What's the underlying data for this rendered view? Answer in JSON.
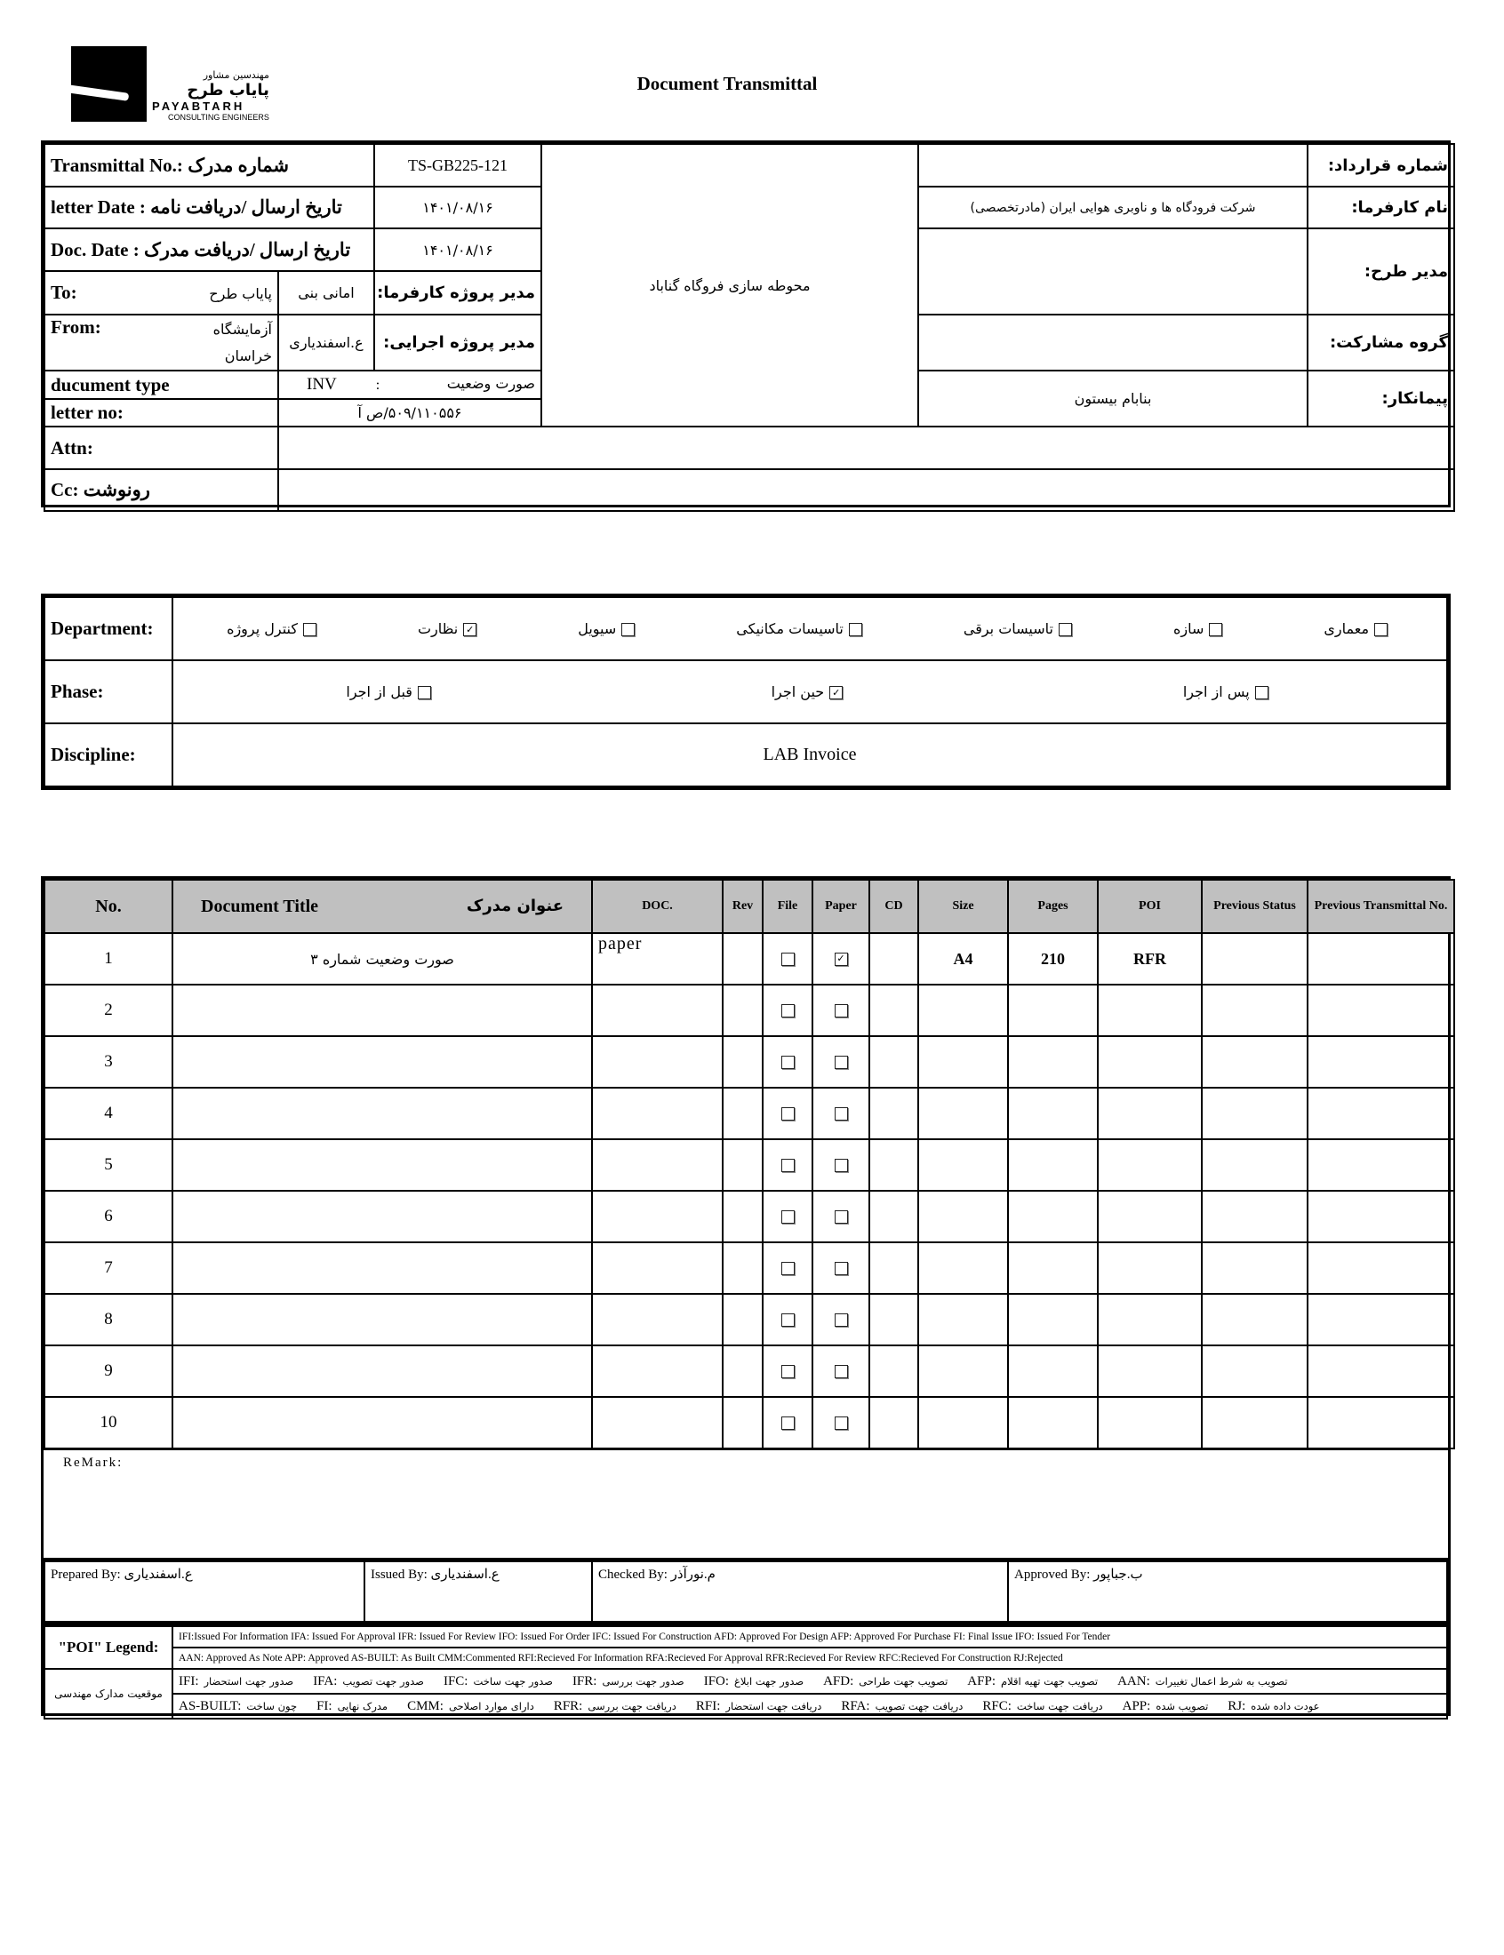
{
  "header": {
    "title": "Document Transmittal",
    "logo": {
      "fa_line1": "مهندسین مشاور",
      "fa_line2": "پایاب طرح",
      "en_line1": "PAYABTARH",
      "en_line2": "CONSULTING ENGINEERS"
    }
  },
  "info": {
    "transmittal_label": "Transmittal No.: شماره مدرک",
    "transmittal_value": "TS-GB225-121",
    "letter_date_label": "letter Date  :  تاریخ ارسال /دریافت نامه",
    "letter_date_value": "۱۴۰۱/۰۸/۱۶",
    "doc_date_label": "Doc. Date :    تاریخ ارسال /دریافت مدرک",
    "doc_date_value": "۱۴۰۱/۰۸/۱۶",
    "to_label": "To:",
    "to_value": "پایاب طرح",
    "client_pm_value": "امانی بنی",
    "client_pm_label": "مدیر پروژه کارفرما:",
    "from_label": "From:",
    "from_value": "آزمایشگاه خراسان",
    "exec_pm_value": "ع.اسفندیاری",
    "exec_pm_label": "مدیر پروژه اجرایی:",
    "doc_type_label": "ducument type",
    "doc_type_code": "INV",
    "doc_type_sep": ":",
    "doc_type_fa": "صورت وضعیت",
    "letter_no_label": "letter no:",
    "letter_no_value": "۵۰۹/۱۱۰۵۵۶/ص آ",
    "project": "محوطه سازی فروگاه گناباد",
    "contract_label": "شماره قرارداد:",
    "contract_value": "",
    "employer_label": "نام کارفرما:",
    "employer_value": "شرکت فرودگاه ها و ناوبری هوایی ایران (مادرتخصصی)",
    "plan_manager_label": "مدیر طرح:",
    "plan_manager_value": "",
    "partner_label": "گروه مشارکت:",
    "partner_value": "",
    "contractor_label": "پیمانکار:",
    "contractor_value": "بنابام بیستون",
    "attn_label": "Attn:",
    "attn_value": "",
    "cc_label": "Cc: رونوشت",
    "cc_value": ""
  },
  "classification": {
    "department_label": "Department:",
    "departments": [
      {
        "label": "معماری",
        "checked": false
      },
      {
        "label": "سازه",
        "checked": false
      },
      {
        "label": "تاسیسات برقی",
        "checked": false
      },
      {
        "label": "تاسیسات مکانیکی",
        "checked": false
      },
      {
        "label": "سیویل",
        "checked": false
      },
      {
        "label": "نظارت",
        "checked": true
      },
      {
        "label": "کنترل پروژه",
        "checked": false
      }
    ],
    "phase_label": "Phase:",
    "phases": [
      {
        "label": "پس از اجرا",
        "checked": false
      },
      {
        "label": "حین اجرا",
        "checked": true
      },
      {
        "label": "قبل از اجرا",
        "checked": false
      }
    ],
    "discipline_label": "Discipline:",
    "discipline_value": "LAB Invoice"
  },
  "documents": {
    "columns": [
      "No.",
      "Document Title",
      "عنوان مدرک",
      "DOC.",
      "Rev",
      "File",
      "Paper",
      "CD",
      "Size",
      "Pages",
      "POI",
      "Previous Status",
      "Previous Transmittal No."
    ],
    "rows": [
      {
        "no": "1",
        "title": "صورت وضعیت شماره ۳",
        "doc": "paper",
        "rev": "",
        "file": false,
        "paper": true,
        "cd": "",
        "size": "A4",
        "pages": "210",
        "poi": "RFR",
        "prev_status": "",
        "prev_transmittal": ""
      },
      {
        "no": "2",
        "title": "",
        "doc": "",
        "rev": "",
        "file": false,
        "paper": false,
        "cd": "",
        "size": "",
        "pages": "",
        "poi": "",
        "prev_status": "",
        "prev_transmittal": ""
      },
      {
        "no": "3",
        "title": "",
        "doc": "",
        "rev": "",
        "file": false,
        "paper": false,
        "cd": "",
        "size": "",
        "pages": "",
        "poi": "",
        "prev_status": "",
        "prev_transmittal": ""
      },
      {
        "no": "4",
        "title": "",
        "doc": "",
        "rev": "",
        "file": false,
        "paper": false,
        "cd": "",
        "size": "",
        "pages": "",
        "poi": "",
        "prev_status": "",
        "prev_transmittal": ""
      },
      {
        "no": "5",
        "title": "",
        "doc": "",
        "rev": "",
        "file": false,
        "paper": false,
        "cd": "",
        "size": "",
        "pages": "",
        "poi": "",
        "prev_status": "",
        "prev_transmittal": ""
      },
      {
        "no": "6",
        "title": "",
        "doc": "",
        "rev": "",
        "file": false,
        "paper": false,
        "cd": "",
        "size": "",
        "pages": "",
        "poi": "",
        "prev_status": "",
        "prev_transmittal": ""
      },
      {
        "no": "7",
        "title": "",
        "doc": "",
        "rev": "",
        "file": false,
        "paper": false,
        "cd": "",
        "size": "",
        "pages": "",
        "poi": "",
        "prev_status": "",
        "prev_transmittal": ""
      },
      {
        "no": "8",
        "title": "",
        "doc": "",
        "rev": "",
        "file": false,
        "paper": false,
        "cd": "",
        "size": "",
        "pages": "",
        "poi": "",
        "prev_status": "",
        "prev_transmittal": ""
      },
      {
        "no": "9",
        "title": "",
        "doc": "",
        "rev": "",
        "file": false,
        "paper": false,
        "cd": "",
        "size": "",
        "pages": "",
        "poi": "",
        "prev_status": "",
        "prev_transmittal": ""
      },
      {
        "no": "10",
        "title": "",
        "doc": "",
        "rev": "",
        "file": false,
        "paper": false,
        "cd": "",
        "size": "",
        "pages": "",
        "poi": "",
        "prev_status": "",
        "prev_transmittal": ""
      }
    ]
  },
  "remark_label": "ReMark:",
  "signatures": {
    "prepared": "Prepared By: ع.اسفندیاری",
    "issued": "Issued By: ع.اسفندیاری",
    "checked": "Checked By: م.نورآذر",
    "approved": "Approved By: ب.جباپور"
  },
  "legend": {
    "poi_label": "\"POI\" Legend:",
    "poi_line1": "IFI:Issued For Information  IFA: Issued For Approval  IFR: Issued For Review   IFO: Issued For Order  IFC: Issued For Construction AFD: Approved For Design AFP: Approved For Purchase  FI: Final Issue  IFO: Issued For Tender",
    "poi_line2": "AAN: Approved As Note  APP: Approved  AS-BUILT: As Built CMM:Commented  RFI:Recieved For Information   RFA:Recieved For Approval   RFR:Recieved For Review  RFC:Recieved For Construction  RJ:Rejected",
    "status_label": "موقعیت مدارک مهندسی",
    "status_line1": [
      {
        "code": "IFI:",
        "desc": "صدور جهت استحضار"
      },
      {
        "code": "IFA:",
        "desc": "صدور جهت تصویب"
      },
      {
        "code": "IFC:",
        "desc": "صدور جهت ساخت"
      },
      {
        "code": "IFR:",
        "desc": "صدور جهت بررسی"
      },
      {
        "code": "IFO:",
        "desc": "صدور جهت ابلاغ"
      },
      {
        "code": "AFD:",
        "desc": "تصویب جهت طراحی"
      },
      {
        "code": "AFP:",
        "desc": "تصویب جهت تهیه اقلام"
      },
      {
        "code": "AAN:",
        "desc": "تصویب به شرط اعمال تغییرات"
      }
    ],
    "status_line2": [
      {
        "code": "AS-BUILT:",
        "desc": "چون ساخت"
      },
      {
        "code": "FI:",
        "desc": "مدرک نهایی"
      },
      {
        "code": "CMM:",
        "desc": "دارای موارد اصلاحی"
      },
      {
        "code": "RFR:",
        "desc": "دریافت جهت بررسی"
      },
      {
        "code": "RFI:",
        "desc": "دریافت جهت استحضار"
      },
      {
        "code": "RFA:",
        "desc": "دریافت جهت تصویب"
      },
      {
        "code": "RFC:",
        "desc": "دریافت جهت ساخت"
      },
      {
        "code": "APP:",
        "desc": "تصویب شده"
      },
      {
        "code": "RJ:",
        "desc": "عودت داده شده"
      }
    ]
  }
}
